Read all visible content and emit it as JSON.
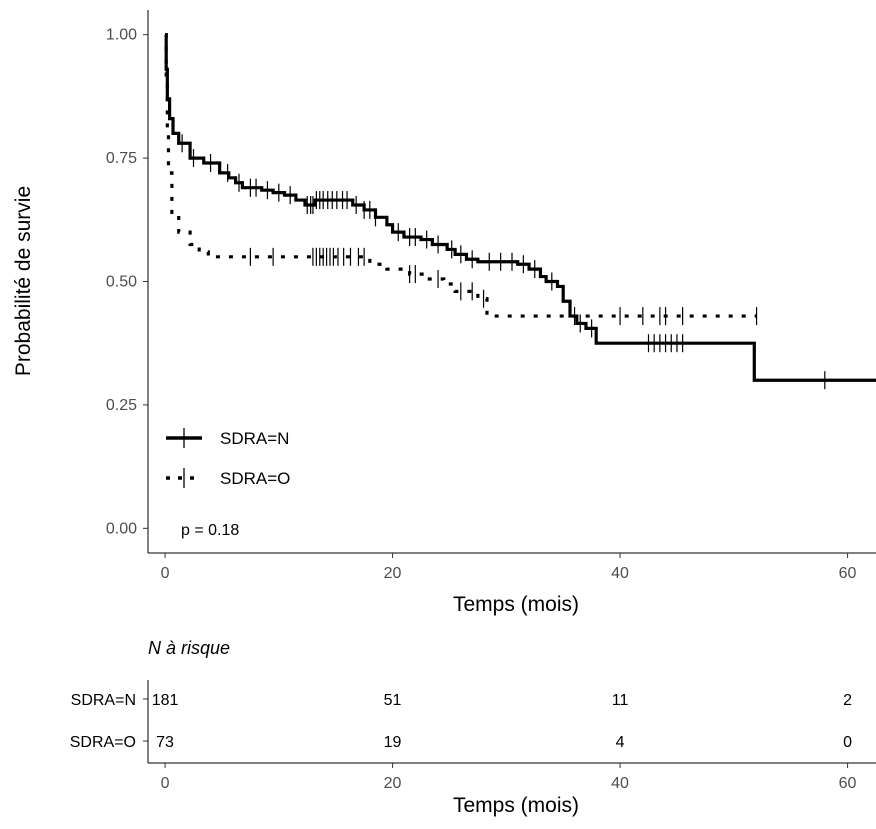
{
  "chart_data": {
    "type": "line",
    "subtype": "kaplan-meier",
    "ylabel": "Probabilité de survie",
    "xlabel": "Temps (mois)",
    "xlim": [
      -1.5,
      62.5
    ],
    "ylim": [
      -0.05,
      1.05
    ],
    "x_ticks": [
      0,
      20,
      40,
      60
    ],
    "y_ticks": [
      0.0,
      0.25,
      0.5,
      0.75,
      1.0
    ],
    "y_tick_labels": [
      "0.00",
      "0.25",
      "0.50",
      "0.75",
      "1.00"
    ],
    "grid": false,
    "legend_position": "bottom-left",
    "pvalue_text": "p = 0.18",
    "series": [
      {
        "name": "SDRA=N",
        "style": "solid",
        "steps": [
          [
            0,
            1.0
          ],
          [
            0.1,
            0.93
          ],
          [
            0.2,
            0.87
          ],
          [
            0.4,
            0.83
          ],
          [
            0.7,
            0.8
          ],
          [
            1.2,
            0.78
          ],
          [
            2.2,
            0.75
          ],
          [
            3.4,
            0.74
          ],
          [
            4.8,
            0.72
          ],
          [
            5.6,
            0.71
          ],
          [
            6.2,
            0.7
          ],
          [
            6.8,
            0.69
          ],
          [
            8.5,
            0.685
          ],
          [
            9.5,
            0.68
          ],
          [
            10.5,
            0.675
          ],
          [
            11.5,
            0.665
          ],
          [
            12.3,
            0.655
          ],
          [
            13.2,
            0.665
          ],
          [
            16.5,
            0.655
          ],
          [
            17.5,
            0.645
          ],
          [
            18.5,
            0.63
          ],
          [
            19.5,
            0.615
          ],
          [
            20.0,
            0.6
          ],
          [
            21.0,
            0.59
          ],
          [
            22.5,
            0.585
          ],
          [
            23.5,
            0.575
          ],
          [
            24.8,
            0.565
          ],
          [
            25.5,
            0.555
          ],
          [
            26.5,
            0.545
          ],
          [
            27.5,
            0.54
          ],
          [
            31.0,
            0.535
          ],
          [
            32.0,
            0.525
          ],
          [
            33.0,
            0.51
          ],
          [
            33.5,
            0.5
          ],
          [
            34.5,
            0.49
          ],
          [
            35.0,
            0.46
          ],
          [
            35.6,
            0.43
          ],
          [
            36.2,
            0.415
          ],
          [
            37.0,
            0.405
          ],
          [
            37.9,
            0.375
          ],
          [
            51.8,
            0.3
          ],
          [
            62.5,
            0.3
          ]
        ],
        "censor_x": [
          1.5,
          2.5,
          4.0,
          5.5,
          6.5,
          7.5,
          8.0,
          9.0,
          10.0,
          11.0,
          12.5,
          12.8,
          13.0,
          13.3,
          13.6,
          13.9,
          14.3,
          14.7,
          15.1,
          15.6,
          16.0,
          16.8,
          17.5,
          18.0,
          18.5,
          20.5,
          21.5,
          22.0,
          23.0,
          24.0,
          25.2,
          26.0,
          27.0,
          28.5,
          29.5,
          30.5,
          31.5,
          32.5,
          34.0,
          36.0,
          36.5,
          37.5,
          42.5,
          43.0,
          43.5,
          44.0,
          44.5,
          45.0,
          45.5,
          58.0
        ]
      },
      {
        "name": "SDRA=O",
        "style": "dotted",
        "steps": [
          [
            0,
            1.0
          ],
          [
            0.1,
            0.9
          ],
          [
            0.2,
            0.8
          ],
          [
            0.3,
            0.72
          ],
          [
            0.6,
            0.64
          ],
          [
            1.2,
            0.6
          ],
          [
            2.2,
            0.575
          ],
          [
            3.0,
            0.56
          ],
          [
            3.8,
            0.55
          ],
          [
            18.0,
            0.535
          ],
          [
            19.5,
            0.525
          ],
          [
            21.5,
            0.515
          ],
          [
            23.0,
            0.505
          ],
          [
            24.5,
            0.495
          ],
          [
            25.5,
            0.48
          ],
          [
            27.5,
            0.465
          ],
          [
            28.3,
            0.43
          ],
          [
            52.0,
            0.43
          ]
        ],
        "censor_x": [
          7.5,
          9.5,
          13.0,
          13.3,
          13.6,
          13.9,
          14.2,
          14.5,
          14.8,
          15.2,
          15.7,
          16.3,
          17.0,
          17.5,
          21.5,
          22.0,
          24.0,
          26.0,
          27.0,
          28.0,
          40.0,
          42.0,
          43.5,
          44.0,
          45.5,
          52.0
        ]
      }
    ]
  },
  "risk_table": {
    "title": "N à risque",
    "xlabel": "Temps (mois)",
    "x_ticks": [
      0,
      20,
      40,
      60
    ],
    "rows": [
      {
        "label": "SDRA=N",
        "values": [
          "181",
          "51",
          "11",
          "2"
        ]
      },
      {
        "label": "SDRA=O",
        "values": [
          "73",
          "19",
          "4",
          "0"
        ]
      }
    ]
  }
}
